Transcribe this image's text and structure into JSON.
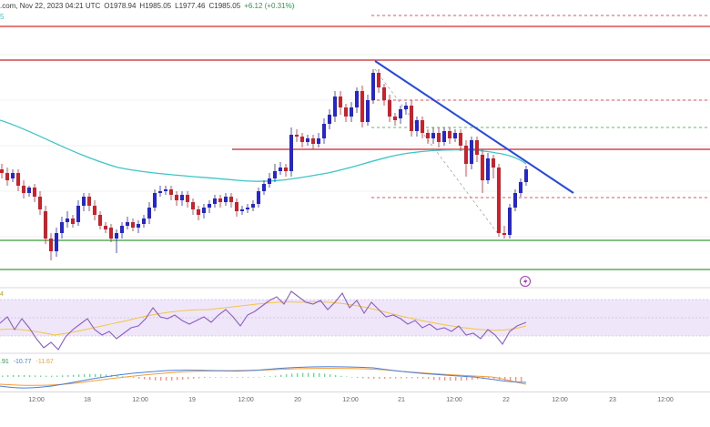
{
  "header": {
    "source_date": ".com, Nov 22, 2023 04:21 UTC",
    "open": "O1978.94",
    "high": "H1985.05",
    "low": "L1977.46",
    "close": "C1985.05",
    "change": "+6.12 (+0.31%)",
    "sub_label": "5"
  },
  "rsi": {
    "label": "4"
  },
  "macd": {
    "v1": ".91",
    "v2": "-10.77",
    "v3": "-11.67"
  },
  "x_axis_ticks": [
    "12:00",
    "18",
    "12:00",
    "19",
    "12:00",
    "20",
    "12:00",
    "21",
    "12:00",
    "22",
    "12:00",
    "23",
    "12:00"
  ],
  "colors": {
    "bull": "#2727c9",
    "bear": "#c8232c",
    "ma": "#3ec6c6",
    "trendline": "#2448e6",
    "resistance": "#d42a2a",
    "support": "#3a9a3a",
    "rsi_line": "#8a5ec7",
    "rsi_ma": "#f4c542",
    "macd_line": "#4a7fd6",
    "signal_line": "#f39c38"
  },
  "icons": {
    "pane_icon": "lightning-icon"
  }
}
